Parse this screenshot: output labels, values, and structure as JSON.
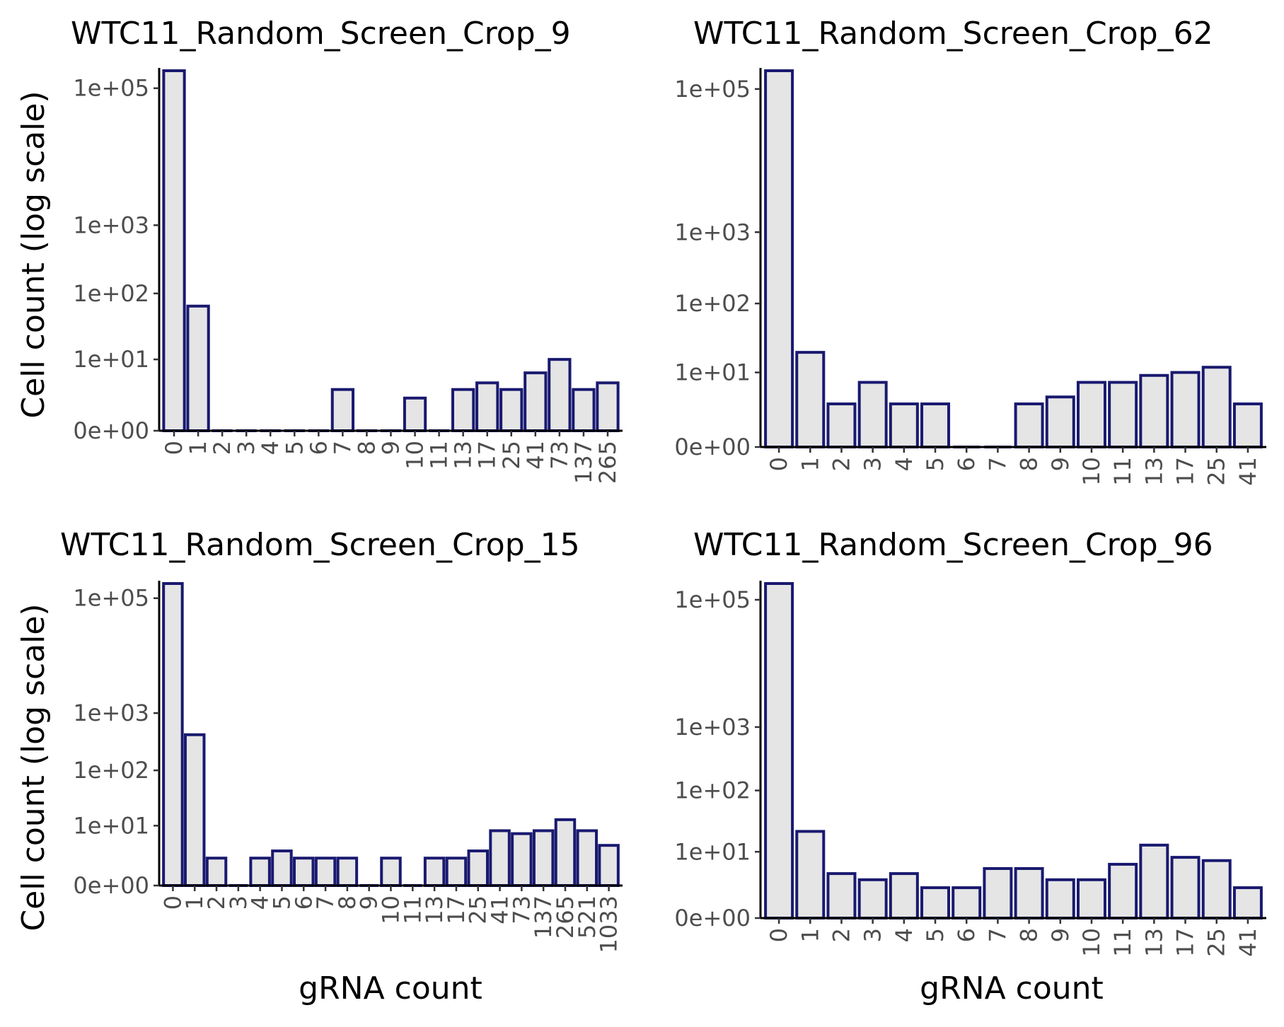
{
  "figure": {
    "y_axis_label": "Cell count (log scale)",
    "x_axis_label": "gRNA count",
    "bar_fill": "#e5e5e5",
    "bar_outline": "#191970"
  },
  "chart_data": [
    {
      "type": "bar",
      "title": "WTC11_Random_Screen_Crop_9",
      "xlabel": "",
      "ylabel": "Cell count (log scale)",
      "y_scale": "log1p",
      "y_ticks": [
        "0e+00",
        "1e+01",
        "1e+02",
        "1e+03",
        "1e+05"
      ],
      "categories": [
        "0",
        "1",
        "2",
        "3",
        "4",
        "5",
        "6",
        "7",
        "8",
        "9",
        "10",
        "11",
        "13",
        "17",
        "25",
        "41",
        "73",
        "137",
        "265"
      ],
      "values": [
        180000,
        65,
        0,
        0,
        0,
        0,
        0,
        3,
        0,
        0,
        2,
        0,
        3,
        4,
        3,
        6,
        10,
        3,
        4
      ],
      "grid": false
    },
    {
      "type": "bar",
      "title": "WTC11_Random_Screen_Crop_62",
      "xlabel": "",
      "ylabel": "",
      "y_scale": "log1p",
      "y_ticks": [
        "0e+00",
        "1e+01",
        "1e+02",
        "1e+03",
        "1e+05"
      ],
      "categories": [
        "0",
        "1",
        "2",
        "3",
        "4",
        "5",
        "6",
        "7",
        "8",
        "9",
        "10",
        "11",
        "13",
        "17",
        "25",
        "41"
      ],
      "values": [
        180000,
        20,
        3,
        7,
        3,
        3,
        0,
        0,
        3,
        4,
        7,
        7,
        9,
        10,
        12,
        3
      ],
      "grid": false
    },
    {
      "type": "bar",
      "title": "WTC11_Random_Screen_Crop_15",
      "xlabel": "gRNA count",
      "ylabel": "Cell count (log scale)",
      "y_scale": "log1p",
      "y_ticks": [
        "0e+00",
        "1e+01",
        "1e+02",
        "1e+03",
        "1e+05"
      ],
      "categories": [
        "0",
        "1",
        "2",
        "3",
        "4",
        "5",
        "6",
        "7",
        "8",
        "9",
        "10",
        "11",
        "13",
        "17",
        "25",
        "41",
        "73",
        "137",
        "265",
        "521",
        "1033"
      ],
      "values": [
        180000,
        420,
        2,
        0,
        2,
        3,
        2,
        2,
        2,
        0,
        2,
        0,
        2,
        2,
        3,
        8,
        7,
        8,
        13,
        8,
        4
      ],
      "grid": false
    },
    {
      "type": "bar",
      "title": "WTC11_Random_Screen_Crop_96",
      "xlabel": "gRNA count",
      "ylabel": "",
      "y_scale": "log1p",
      "y_ticks": [
        "0e+00",
        "1e+01",
        "1e+02",
        "1e+03",
        "1e+05"
      ],
      "categories": [
        "0",
        "1",
        "2",
        "3",
        "4",
        "5",
        "6",
        "7",
        "8",
        "9",
        "10",
        "11",
        "13",
        "17",
        "25",
        "41"
      ],
      "values": [
        180000,
        22,
        4,
        3,
        4,
        2,
        2,
        5,
        5,
        3,
        3,
        6,
        13,
        8,
        7,
        2
      ],
      "grid": false
    }
  ]
}
